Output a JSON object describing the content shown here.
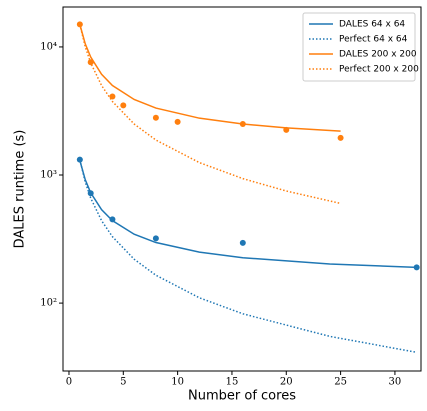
{
  "chart_data": {
    "type": "line",
    "xlabel": "Number of cores",
    "ylabel": "DALES runtime (s)",
    "xlim": [
      -0.55,
      32.4
    ],
    "xticks": [
      0,
      5,
      10,
      15,
      20,
      25,
      30
    ],
    "ylim": [
      29.5,
      20500
    ],
    "yscale": "log",
    "yticks": [
      {
        "value": 100,
        "label": "10²"
      },
      {
        "value": 1000,
        "label": "10³"
      },
      {
        "value": 10000,
        "label": "10⁴"
      }
    ],
    "legend": "upper right",
    "series": [
      {
        "name": "DALES 64 x 64",
        "color": "#1f77b4",
        "style": "solid",
        "x": [
          1,
          1.5,
          2,
          3,
          4,
          6,
          8,
          12,
          16,
          24,
          32
        ],
        "values": [
          1300,
          918,
          727,
          536,
          440,
          345,
          297,
          250,
          226,
          202,
          190
        ]
      },
      {
        "name": "Perfect 64 x 64",
        "color": "#1f77b4",
        "style": "dotted",
        "x": [
          1,
          1.5,
          2,
          3,
          4,
          6,
          8,
          12,
          16,
          24,
          32
        ],
        "values": [
          1320,
          880,
          660,
          440,
          330,
          220,
          165,
          110,
          82.5,
          55,
          41.25
        ]
      },
      {
        "name": "DALES 200 x 200",
        "color": "#ff7f0e",
        "style": "solid",
        "x": [
          1,
          1.5,
          2,
          3,
          4,
          6,
          8,
          12,
          16,
          20,
          25
        ],
        "values": [
          15000,
          10556,
          8333,
          6111,
          5000,
          3889,
          3333,
          2778,
          2500,
          2333,
          2200
        ]
      },
      {
        "name": "Perfect 200 x 200",
        "color": "#ff7f0e",
        "style": "dotted",
        "x": [
          1,
          1.5,
          2,
          3,
          4,
          6,
          8,
          12,
          16,
          20,
          25
        ],
        "values": [
          15000,
          10000,
          7500,
          5000,
          3750,
          2500,
          1875,
          1250,
          937.5,
          750,
          600
        ]
      },
      {
        "color": "#1f77b4",
        "style": "markers",
        "x": [
          1,
          2,
          4,
          8,
          16,
          32
        ],
        "values": [
          1320,
          720,
          450,
          320,
          295,
          190
        ]
      },
      {
        "color": "#ff7f0e",
        "style": "markers",
        "x": [
          1,
          2,
          4,
          5,
          8,
          10,
          16,
          20,
          25
        ],
        "values": [
          15000,
          7600,
          4100,
          3500,
          2800,
          2600,
          2500,
          2250,
          1950
        ]
      }
    ]
  }
}
